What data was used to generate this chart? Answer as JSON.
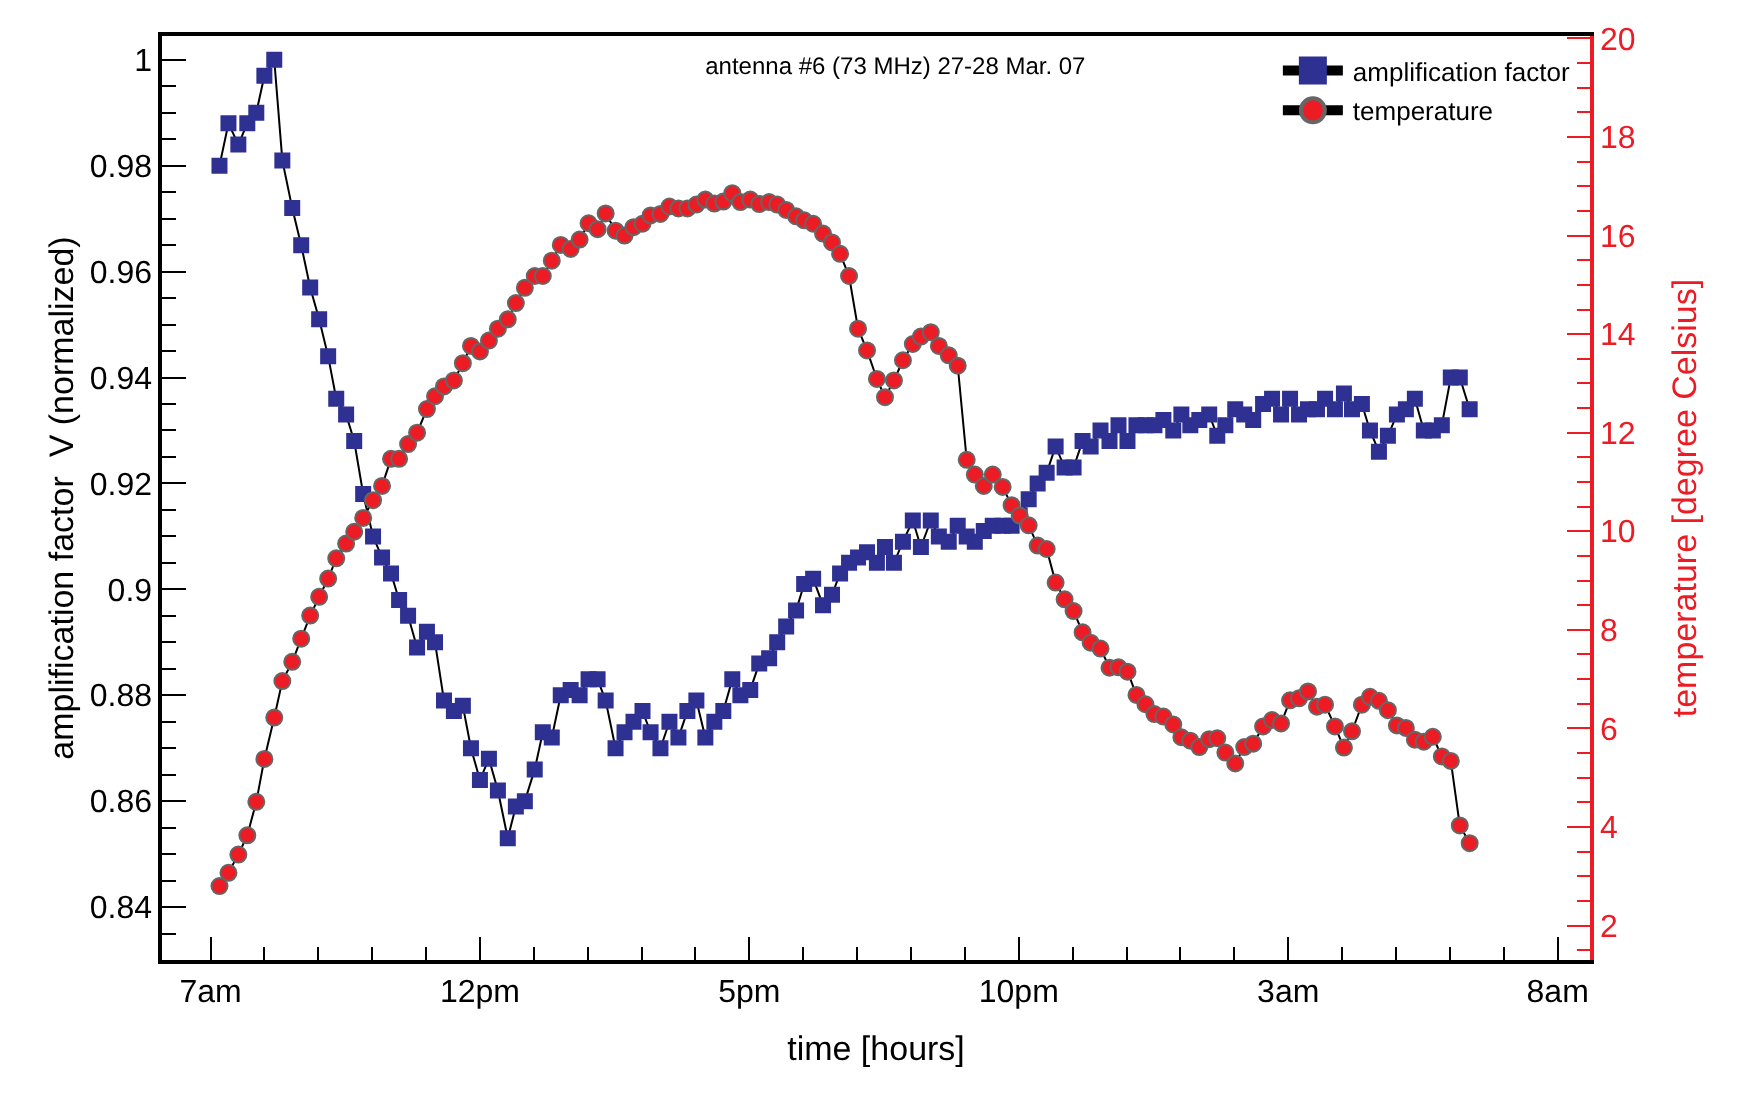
{
  "chart_data": {
    "type": "line",
    "title": "antenna #6 (73 MHz) 27-28 Mar. 07",
    "xlabel": "time [hours]",
    "ylabel": "amplification factor  V (normalized)",
    "y2label": "temperature [degree Celsius]",
    "x": [
      "--03-27T07:10",
      "--03-27T07:20",
      "--03-27T07:31",
      "--03-27T07:41",
      "--03-27T07:51",
      "--03-27T08:00",
      "--03-27T08:11",
      "--03-27T08:20",
      "--03-27T08:31",
      "--03-27T08:41",
      "--03-27T08:51",
      "--03-27T09:01",
      "--03-27T09:11",
      "--03-27T09:20",
      "--03-27T09:31",
      "--03-27T09:40",
      "--03-27T09:50",
      "--03-27T10:01",
      "--03-27T10:11",
      "--03-27T10:21",
      "--03-27T10:30",
      "--03-27T10:40",
      "--03-27T10:50",
      "--03-27T11:01",
      "--03-27T11:10",
      "--03-27T11:20",
      "--03-27T11:31",
      "--03-27T11:41",
      "--03-27T11:50",
      "--03-27T12:00",
      "--03-27T12:10",
      "--03-27T12:20",
      "--03-27T12:31",
      "--03-27T12:40",
      "--03-27T12:50",
      "--03-27T13:01",
      "--03-27T13:10",
      "--03-27T13:20",
      "--03-27T13:30",
      "--03-27T13:41",
      "--03-27T13:51",
      "--03-27T14:01",
      "--03-27T14:11",
      "--03-27T14:20",
      "--03-27T14:31",
      "--03-27T14:41",
      "--03-27T14:51",
      "--03-27T15:01",
      "--03-27T15:10",
      "--03-27T15:21",
      "--03-27T15:31",
      "--03-27T15:41",
      "--03-27T15:51",
      "--03-27T16:01",
      "--03-27T16:11",
      "--03-27T16:21",
      "--03-27T16:31",
      "--03-27T16:41",
      "--03-27T16:50",
      "--03-27T17:01",
      "--03-27T17:11",
      "--03-27T17:22",
      "--03-27T17:31",
      "--03-27T17:41",
      "--03-27T17:52",
      "--03-27T18:01",
      "--03-27T18:11",
      "--03-27T18:22",
      "--03-27T18:32",
      "--03-27T18:41",
      "--03-27T18:51",
      "--03-27T19:01",
      "--03-27T19:11",
      "--03-27T19:22",
      "--03-27T19:31",
      "--03-27T19:41",
      "--03-27T19:51",
      "--03-27T20:02",
      "--03-27T20:11",
      "--03-27T20:22",
      "--03-27T20:31",
      "--03-27T20:42",
      "--03-27T20:52",
      "--03-27T21:02",
      "--03-27T21:11",
      "--03-27T21:21",
      "--03-27T21:31",
      "--03-27T21:42",
      "--03-27T21:52",
      "--03-27T22:01",
      "--03-27T22:11",
      "--03-27T22:21",
      "--03-27T22:31",
      "--03-27T22:41",
      "--03-27T22:51",
      "--03-27T23:01",
      "--03-27T23:11",
      "--03-27T23:20",
      "--03-27T23:31",
      "--03-27T23:41",
      "--03-27T23:51",
      "--03-28T00:01",
      "--03-28T00:11",
      "--03-28T00:21",
      "--03-28T00:31",
      "--03-28T00:41",
      "--03-28T00:52",
      "--03-28T01:01",
      "--03-28T01:11",
      "--03-28T01:21",
      "--03-28T01:32",
      "--03-28T01:41",
      "--03-28T01:50",
      "--03-28T02:01",
      "--03-28T02:11",
      "--03-28T02:21",
      "--03-28T02:32",
      "--03-28T02:42",
      "--03-28T02:52",
      "--03-28T03:02",
      "--03-28T03:12",
      "--03-28T03:22",
      "--03-28T03:32",
      "--03-28T03:41",
      "--03-28T03:52",
      "--03-28T04:02",
      "--03-28T04:11",
      "--03-28T04:22",
      "--03-28T04:31",
      "--03-28T04:41",
      "--03-28T04:51",
      "--03-28T05:01",
      "--03-28T05:11",
      "--03-28T05:21",
      "--03-28T05:31",
      "--03-28T05:41",
      "--03-28T05:51",
      "--03-28T06:01",
      "--03-28T06:11",
      "--03-28T06:22"
    ],
    "series": [
      {
        "name": "amplification factor",
        "color": "#2e3192",
        "marker": "square",
        "values": [
          0.98,
          0.988,
          0.984,
          0.988,
          0.99,
          0.997,
          1.0,
          0.981,
          0.972,
          0.965,
          0.957,
          0.951,
          0.944,
          0.936,
          0.933,
          0.928,
          0.918,
          0.91,
          0.906,
          0.903,
          0.898,
          0.895,
          0.889,
          0.892,
          0.89,
          0.879,
          0.877,
          0.878,
          0.87,
          0.864,
          0.868,
          0.862,
          0.853,
          0.859,
          0.86,
          0.866,
          0.873,
          0.872,
          0.88,
          0.881,
          0.88,
          0.883,
          0.883,
          0.879,
          0.87,
          0.873,
          0.875,
          0.877,
          0.873,
          0.87,
          0.875,
          0.872,
          0.877,
          0.879,
          0.872,
          0.875,
          0.877,
          0.883,
          0.88,
          0.881,
          0.886,
          0.887,
          0.89,
          0.893,
          0.896,
          0.901,
          0.902,
          0.897,
          0.899,
          0.903,
          0.905,
          0.906,
          0.907,
          0.905,
          0.908,
          0.905,
          0.909,
          0.913,
          0.908,
          0.913,
          0.91,
          0.909,
          0.912,
          0.91,
          0.909,
          0.911,
          0.912,
          0.912,
          0.912,
          0.914,
          0.917,
          0.92,
          0.922,
          0.927,
          0.923,
          0.923,
          0.928,
          0.927,
          0.93,
          0.928,
          0.931,
          0.928,
          0.931,
          0.931,
          0.931,
          0.932,
          0.93,
          0.933,
          0.931,
          0.932,
          0.933,
          0.929,
          0.931,
          0.934,
          0.933,
          0.932,
          0.935,
          0.936,
          0.933,
          0.936,
          0.933,
          0.934,
          0.934,
          0.936,
          0.934,
          0.937,
          0.934,
          0.935,
          0.93,
          0.926,
          0.929,
          0.933,
          0.934,
          0.936,
          0.93,
          0.93,
          0.931,
          0.94,
          0.94,
          0.934
        ]
      },
      {
        "name": "temperature",
        "color": "#ed1c24",
        "marker": "circle",
        "axis": "y2",
        "values": [
          2.8,
          3.07,
          3.44,
          3.83,
          4.51,
          5.38,
          6.22,
          6.96,
          7.35,
          7.82,
          8.29,
          8.67,
          9.04,
          9.45,
          9.75,
          9.99,
          10.27,
          10.63,
          10.92,
          11.47,
          11.47,
          11.77,
          12.0,
          12.48,
          12.74,
          12.94,
          13.06,
          13.41,
          13.76,
          13.65,
          13.87,
          14.11,
          14.3,
          14.63,
          14.94,
          15.18,
          15.18,
          15.49,
          15.81,
          15.73,
          15.92,
          16.25,
          16.13,
          16.45,
          16.1,
          16.0,
          16.17,
          16.24,
          16.41,
          16.44,
          16.59,
          16.55,
          16.55,
          16.63,
          16.73,
          16.65,
          16.69,
          16.86,
          16.68,
          16.73,
          16.64,
          16.68,
          16.63,
          16.52,
          16.39,
          16.31,
          16.24,
          16.04,
          15.86,
          15.63,
          15.18,
          14.11,
          13.67,
          13.09,
          12.72,
          13.06,
          13.47,
          13.8,
          13.95,
          14.04,
          13.76,
          13.57,
          13.36,
          11.45,
          11.15,
          10.92,
          11.15,
          10.9,
          10.53,
          10.32,
          10.12,
          9.71,
          9.64,
          8.96,
          8.62,
          8.38,
          7.95,
          7.74,
          7.62,
          7.23,
          7.24,
          7.15,
          6.68,
          6.49,
          6.29,
          6.24,
          6.08,
          5.82,
          5.75,
          5.62,
          5.78,
          5.8,
          5.51,
          5.29,
          5.62,
          5.69,
          6.04,
          6.17,
          6.1,
          6.57,
          6.61,
          6.75,
          6.44,
          6.48,
          6.04,
          5.61,
          5.94,
          6.48,
          6.64,
          6.56,
          6.37,
          6.06,
          6.01,
          5.77,
          5.73,
          5.83,
          5.43,
          5.34,
          4.03,
          3.67
        ]
      }
    ],
    "xlim": [
      "--03-27T06:06",
      "--03-28T08:36"
    ],
    "xticks": [
      {
        "value": "--03-27T07:00",
        "label": "7am"
      },
      {
        "value": "--03-27T12:00",
        "label": "12pm"
      },
      {
        "value": "--03-27T17:00",
        "label": "5pm"
      },
      {
        "value": "--03-27T22:00",
        "label": "10pm"
      },
      {
        "value": "--03-28T03:00",
        "label": "3am"
      },
      {
        "value": "--03-28T08:00",
        "label": "8am"
      }
    ],
    "ylim": [
      0.83,
      1.0045
    ],
    "yticks": [
      0.84,
      0.86,
      0.88,
      0.9,
      0.92,
      0.94,
      0.96,
      0.98,
      1
    ],
    "y2lim": [
      1.3,
      20.05
    ],
    "y2ticks": [
      2,
      4,
      6,
      8,
      10,
      12,
      14,
      16,
      18,
      20
    ],
    "legend": "top right",
    "grid": false,
    "line_style": "solid"
  }
}
